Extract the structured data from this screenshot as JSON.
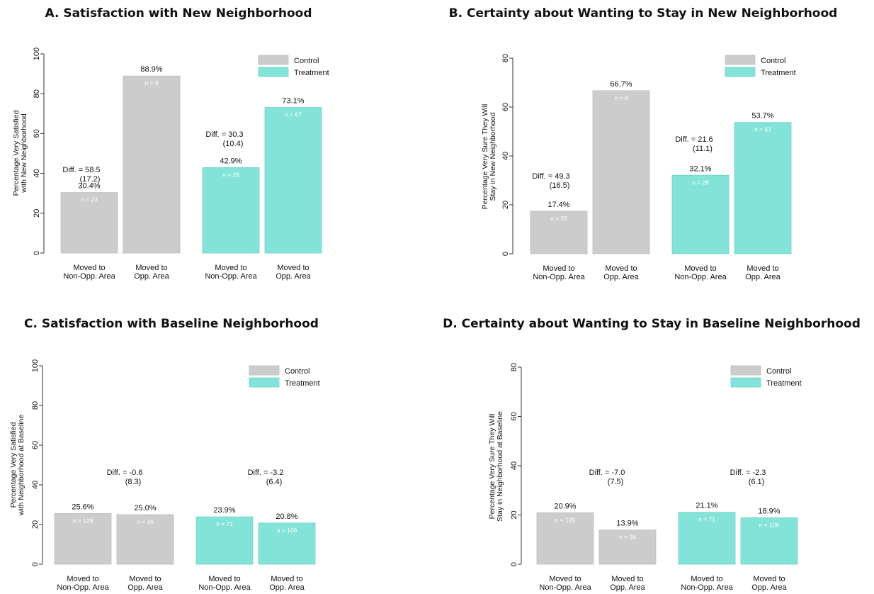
{
  "chart_data": [
    {
      "type": "bar",
      "title": "A. Satisfaction with New Neighborhood",
      "ylabel": [
        "Percentage Very Satisfied",
        "with New Neighborhood"
      ],
      "ylim": [
        0,
        100
      ],
      "yticks": [
        "0",
        "20",
        "40",
        "60",
        "80",
        "100"
      ],
      "legend": {
        "placement": "top-right",
        "entries": [
          "Control",
          "Treatment"
        ]
      },
      "categories": [
        "Moved to Non-Opp. Area",
        "Moved to Opp. Area",
        "Moved to Non-Opp. Area",
        "Moved to Opp. Area"
      ],
      "bars": [
        {
          "group": "Control",
          "category": "Moved to Non-Opp. Area",
          "value": 30.4,
          "label": "30.4%",
          "n": "n = 23"
        },
        {
          "group": "Control",
          "category": "Moved to Opp. Area",
          "value": 88.9,
          "label": "88.9%",
          "n": "n = 9"
        },
        {
          "group": "Treatment",
          "category": "Moved to Non-Opp. Area",
          "value": 42.9,
          "label": "42.9%",
          "n": "n = 28"
        },
        {
          "group": "Treatment",
          "category": "Moved to Opp. Area",
          "value": 73.1,
          "label": "73.1%",
          "n": "n = 67"
        }
      ],
      "diffs": [
        {
          "text": "Diff. = 58.5",
          "se": "(17.2)"
        },
        {
          "text": "Diff. = 30.3",
          "se": "(10.4)"
        }
      ]
    },
    {
      "type": "bar",
      "title": "B. Certainty about Wanting to Stay in New Neighborhood",
      "ylabel": [
        "Percentage Very Sure They Will",
        "Stay in New Neighborhood"
      ],
      "ylim": [
        0,
        80
      ],
      "yticks": [
        "0",
        "20",
        "40",
        "60",
        "80"
      ],
      "legend": {
        "placement": "top-right",
        "entries": [
          "Control",
          "Treatment"
        ]
      },
      "categories": [
        "Moved to Non-Opp. Area",
        "Moved to Opp. Area",
        "Moved to Non-Opp. Area",
        "Moved to Opp. Area"
      ],
      "bars": [
        {
          "group": "Control",
          "category": "Moved to Non-Opp. Area",
          "value": 17.4,
          "label": "17.4%",
          "n": "n = 23"
        },
        {
          "group": "Control",
          "category": "Moved to Opp. Area",
          "value": 66.7,
          "label": "66.7%",
          "n": "n = 9"
        },
        {
          "group": "Treatment",
          "category": "Moved to Non-Opp. Area",
          "value": 32.1,
          "label": "32.1%",
          "n": "n = 28"
        },
        {
          "group": "Treatment",
          "category": "Moved to Opp. Area",
          "value": 53.7,
          "label": "53.7%",
          "n": "n = 67"
        }
      ],
      "diffs": [
        {
          "text": "Diff. = 49.3",
          "se": "(16.5)"
        },
        {
          "text": "Diff. = 21.6",
          "se": "(11.1)"
        }
      ]
    },
    {
      "type": "bar",
      "title": "C. Satisfaction with Baseline Neighborhood",
      "ylabel": [
        "Percentage Very Satisfied",
        "with Neighborhood at Baseline"
      ],
      "ylim": [
        0,
        100
      ],
      "yticks": [
        "0",
        "20",
        "40",
        "60",
        "80",
        "100"
      ],
      "legend": {
        "placement": "top-right",
        "entries": [
          "Control",
          "Treatment"
        ]
      },
      "categories": [
        "Moved to Non-Opp. Area",
        "Moved to Opp. Area",
        "Moved to Non-Opp. Area",
        "Moved to Opp. Area"
      ],
      "bars": [
        {
          "group": "Control",
          "category": "Moved to Non-Opp. Area",
          "value": 25.6,
          "label": "25.6%",
          "n": "n = 129"
        },
        {
          "group": "Control",
          "category": "Moved to Opp. Area",
          "value": 25.0,
          "label": "25.0%",
          "n": "n = 36"
        },
        {
          "group": "Treatment",
          "category": "Moved to Non-Opp. Area",
          "value": 23.9,
          "label": "23.9%",
          "n": "n = 71"
        },
        {
          "group": "Treatment",
          "category": "Moved to Opp. Area",
          "value": 20.8,
          "label": "20.8%",
          "n": "n = 106"
        }
      ],
      "diffs": [
        {
          "text": "Diff. = -0.6",
          "se": "(8.3)"
        },
        {
          "text": "Diff. = -3.2",
          "se": "(6.4)"
        }
      ]
    },
    {
      "type": "bar",
      "title": "D. Certainty about Wanting to Stay in Baseline Neighborhood",
      "ylabel": [
        "Percentage Very Sure They Will",
        "Stay in Neighborhood at Baseline"
      ],
      "ylim": [
        0,
        80
      ],
      "yticks": [
        "0",
        "20",
        "40",
        "60",
        "80"
      ],
      "legend": {
        "placement": "top-right",
        "entries": [
          "Control",
          "Treatment"
        ]
      },
      "categories": [
        "Moved to Non-Opp. Area",
        "Moved to Opp. Area",
        "Moved to Non-Opp. Area",
        "Moved to Opp. Area"
      ],
      "bars": [
        {
          "group": "Control",
          "category": "Moved to Non-Opp. Area",
          "value": 20.9,
          "label": "20.9%",
          "n": "n = 129"
        },
        {
          "group": "Control",
          "category": "Moved to Opp. Area",
          "value": 13.9,
          "label": "13.9%",
          "n": "n = 36"
        },
        {
          "group": "Treatment",
          "category": "Moved to Non-Opp. Area",
          "value": 21.1,
          "label": "21.1%",
          "n": "n = 71"
        },
        {
          "group": "Treatment",
          "category": "Moved to Opp. Area",
          "value": 18.9,
          "label": "18.9%",
          "n": "n = 106"
        }
      ],
      "diffs": [
        {
          "text": "Diff. = -7.0",
          "se": "(7.5)"
        },
        {
          "text": "Diff. = -2.3",
          "se": "(6.1)"
        }
      ]
    }
  ],
  "colors": {
    "Control": "#cccccc",
    "Treatment": "#84e3d8",
    "axis": "#333333",
    "text": "#111111"
  }
}
